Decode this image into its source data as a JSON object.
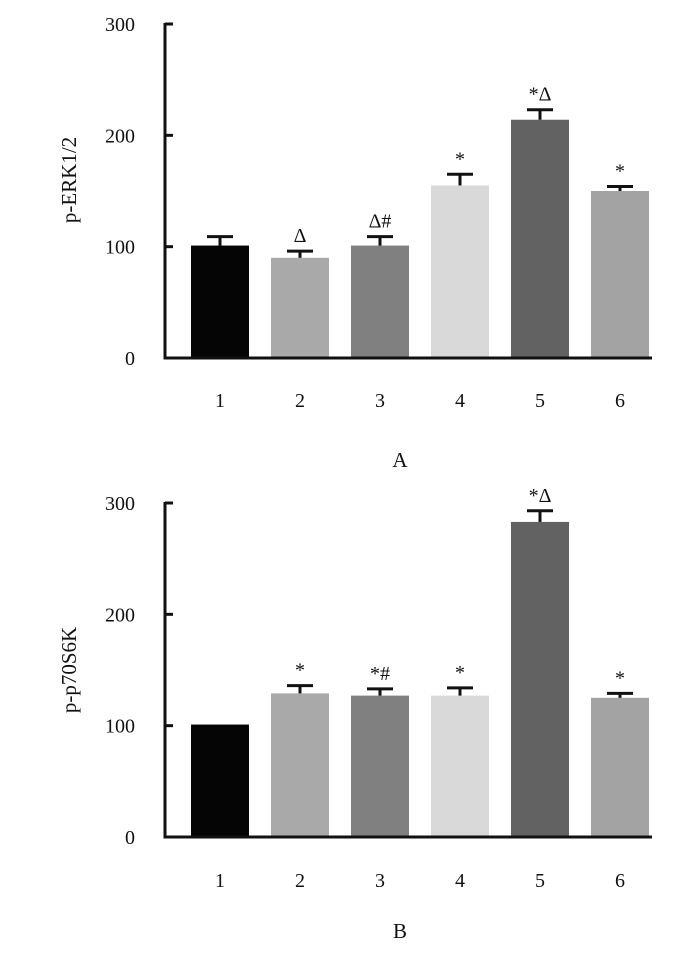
{
  "colors": {
    "axis": "#111111",
    "background": "#ffffff"
  },
  "chart_data": [
    {
      "type": "bar",
      "panel": "A",
      "ylabel": "p-ERK1/2",
      "xlabel": "",
      "ylim": [
        0,
        300
      ],
      "yticks": [
        0,
        100,
        200,
        300
      ],
      "categories": [
        "1",
        "2",
        "3",
        "4",
        "5",
        "6"
      ],
      "values": [
        101,
        90,
        101,
        155,
        214,
        150
      ],
      "errors": [
        8,
        6,
        8,
        10,
        9,
        4
      ],
      "annotations": [
        "",
        "Δ",
        "Δ#",
        "*",
        "*Δ",
        "*"
      ],
      "bar_colors": [
        "#050505",
        "#a9a9a9",
        "#808080",
        "#d9d9d9",
        "#626262",
        "#a3a3a3"
      ]
    },
    {
      "type": "bar",
      "panel": "B",
      "ylabel": "p-p70S6K",
      "xlabel": "",
      "ylim": [
        0,
        300
      ],
      "yticks": [
        0,
        100,
        200,
        300
      ],
      "categories": [
        "1",
        "2",
        "3",
        "4",
        "5",
        "6"
      ],
      "values": [
        101,
        129,
        127,
        127,
        283,
        125
      ],
      "errors": [
        0,
        7,
        6,
        7,
        10,
        4
      ],
      "annotations": [
        "",
        "*",
        "*#",
        "*",
        "*Δ",
        "*"
      ],
      "bar_colors": [
        "#050505",
        "#a9a9a9",
        "#808080",
        "#d9d9d9",
        "#626262",
        "#a3a3a3"
      ]
    }
  ]
}
